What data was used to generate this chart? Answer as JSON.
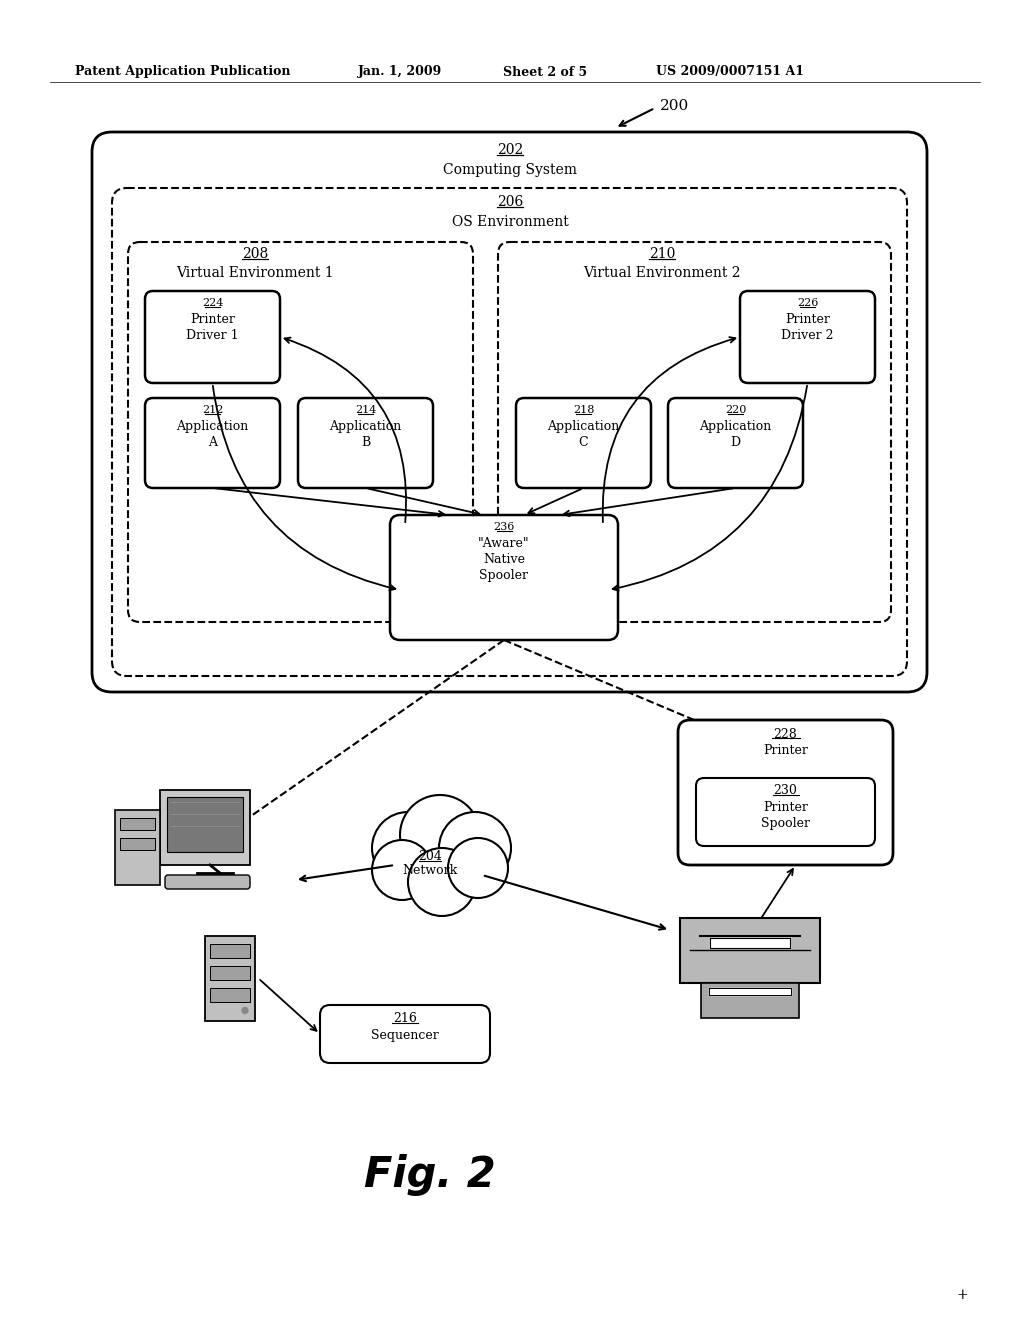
{
  "title_header": "Patent Application Publication",
  "date_header": "Jan. 1, 2009",
  "sheet_header": "Sheet 2 of 5",
  "patent_header": "US 2009/0007151 A1",
  "fig_label": "Fig. 2",
  "ref_200": "200",
  "ref_202": "202",
  "label_202": "Computing System",
  "ref_206": "206",
  "label_206": "OS Environment",
  "ref_208": "208",
  "label_208": "Virtual Environment 1",
  "ref_210": "210",
  "label_210": "Virtual Environment 2",
  "ref_224": "224",
  "label_224": "Printer\nDriver 1",
  "ref_226": "226",
  "label_226": "Printer\nDriver 2",
  "ref_212": "212",
  "label_212": "Application\nA",
  "ref_214": "214",
  "label_214": "Application\nB",
  "ref_218": "218",
  "label_218": "Application\nC",
  "ref_220": "220",
  "label_220": "Application\nD",
  "ref_236": "236",
  "label_236": "\"Aware\"\nNative\nSpooler",
  "ref_228": "228",
  "label_228": "Printer",
  "ref_230": "230",
  "label_230": "Printer\nSpooler",
  "ref_216": "216",
  "label_216": "Sequencer",
  "ref_204": "204",
  "label_204": "Network",
  "bg_color": "#ffffff",
  "box_color": "#000000",
  "text_color": "#000000"
}
